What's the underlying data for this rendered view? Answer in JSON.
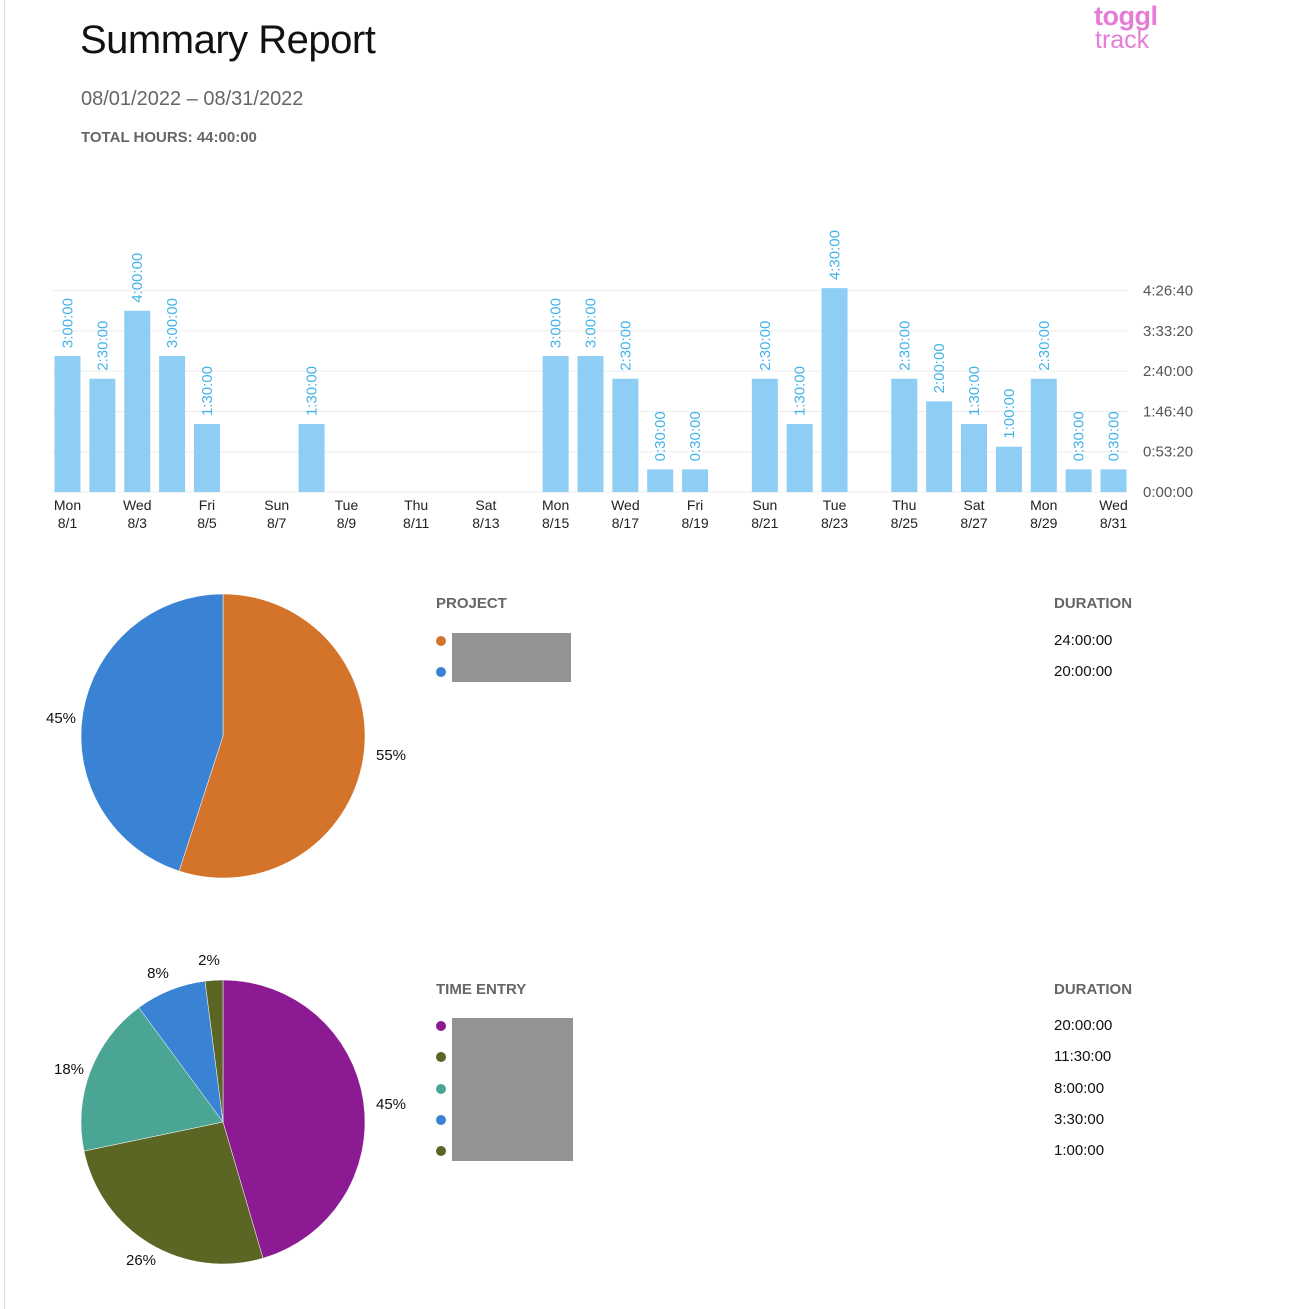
{
  "header": {
    "title": "Summary Report",
    "date_range": "08/01/2022 – 08/31/2022",
    "total_hours": "TOTAL HOURS: 44:00:00",
    "logo_line1": "toggl",
    "logo_line2": "track"
  },
  "colors": {
    "bar": "#8ecdf4",
    "bar_label": "#42b3ea",
    "axis_text": "#555555",
    "grid": "#eeeeee"
  },
  "chart_data": [
    {
      "type": "bar",
      "x": [
        "8/1",
        "8/2",
        "8/3",
        "8/4",
        "8/5",
        "8/6",
        "8/7",
        "8/8",
        "8/9",
        "8/10",
        "8/11",
        "8/12",
        "8/13",
        "8/14",
        "8/15",
        "8/16",
        "8/17",
        "8/18",
        "8/19",
        "8/20",
        "8/21",
        "8/22",
        "8/23",
        "8/24",
        "8/25",
        "8/26",
        "8/27",
        "8/28",
        "8/29",
        "8/30",
        "8/31"
      ],
      "values": [
        3,
        2.5,
        4,
        3,
        1.5,
        0,
        0,
        1.5,
        0,
        0,
        0,
        0,
        0,
        0,
        3,
        3,
        2.5,
        0.5,
        0.5,
        0,
        2.5,
        1.5,
        4.5,
        0,
        2.5,
        2,
        1.5,
        1,
        2.5,
        0.5,
        0.5
      ],
      "data_labels": [
        "3:00:00",
        "2:30:00",
        "4:00:00",
        "3:00:00",
        "1:30:00",
        "",
        "",
        "1:30:00",
        "",
        "",
        "",
        "",
        "",
        "",
        "3:00:00",
        "3:00:00",
        "2:30:00",
        "0:30:00",
        "0:30:00",
        "",
        "2:30:00",
        "1:30:00",
        "4:30:00",
        "",
        "2:30:00",
        "2:00:00",
        "1:30:00",
        "1:00:00",
        "2:30:00",
        "0:30:00",
        "0:30:00"
      ],
      "x_tick_labels": [
        {
          "day": "Mon",
          "date": "8/1"
        },
        {
          "day": "Wed",
          "date": "8/3"
        },
        {
          "day": "Fri",
          "date": "8/5"
        },
        {
          "day": "Sun",
          "date": "8/7"
        },
        {
          "day": "Tue",
          "date": "8/9"
        },
        {
          "day": "Thu",
          "date": "8/11"
        },
        {
          "day": "Sat",
          "date": "8/13"
        },
        {
          "day": "Mon",
          "date": "8/15"
        },
        {
          "day": "Wed",
          "date": "8/17"
        },
        {
          "day": "Fri",
          "date": "8/19"
        },
        {
          "day": "Sun",
          "date": "8/21"
        },
        {
          "day": "Tue",
          "date": "8/23"
        },
        {
          "day": "Thu",
          "date": "8/25"
        },
        {
          "day": "Sat",
          "date": "8/27"
        },
        {
          "day": "Mon",
          "date": "8/29"
        },
        {
          "day": "Wed",
          "date": "8/31"
        }
      ],
      "y_tick_labels": [
        "0:00:00",
        "0:53:20",
        "1:46:40",
        "2:40:00",
        "3:33:20",
        "4:26:40"
      ],
      "ylim": [
        0,
        4.9
      ],
      "grid": true
    },
    {
      "type": "pie",
      "values": [
        55,
        45
      ],
      "labels": [
        "55%",
        "45%"
      ],
      "colors": [
        "#d4742b",
        "#3a82d4"
      ],
      "legend_header": "PROJECT",
      "duration_header": "DURATION",
      "durations": [
        "24:00:00",
        "20:00:00"
      ]
    },
    {
      "type": "pie",
      "values": [
        45,
        26,
        18,
        8,
        2
      ],
      "labels": [
        "45%",
        "26%",
        "18%",
        "8%",
        "2%"
      ],
      "colors": [
        "#8c1b93",
        "#5b6524",
        "#4ba595",
        "#3a82d4",
        "#5b6524"
      ],
      "legend_header": "TIME ENTRY",
      "duration_header": "DURATION",
      "durations": [
        "20:00:00",
        "11:30:00",
        "8:00:00",
        "3:30:00",
        "1:00:00"
      ]
    }
  ]
}
